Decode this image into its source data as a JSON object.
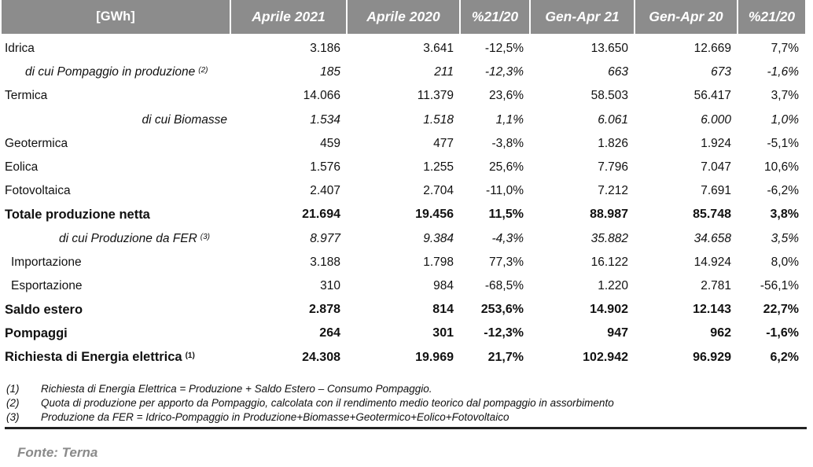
{
  "header": [
    "[GWh]",
    "Aprile 2021",
    "Aprile 2020",
    "%21/20",
    "Gen-Apr 21",
    "Gen-Apr 20",
    "%21/20"
  ],
  "rows": [
    {
      "label": "Idrica",
      "sup": "",
      "values": [
        "3.186",
        "3.641",
        "-12,5%",
        "13.650",
        "12.669",
        "7,7%"
      ]
    },
    {
      "label": "di cui Pompaggio in produzione",
      "sup": "(2)",
      "values": [
        "185",
        "211",
        "-12,3%",
        "663",
        "673",
        "-1,6%"
      ]
    },
    {
      "label": "Termica",
      "sup": "",
      "values": [
        "14.066",
        "11.379",
        "23,6%",
        "58.503",
        "56.417",
        "3,7%"
      ]
    },
    {
      "label": "di cui Biomasse",
      "sup": "",
      "values": [
        "1.534",
        "1.518",
        "1,1%",
        "6.061",
        "6.000",
        "1,0%"
      ]
    },
    {
      "label": "Geotermica",
      "sup": "",
      "values": [
        "459",
        "477",
        "-3,8%",
        "1.826",
        "1.924",
        "-5,1%"
      ]
    },
    {
      "label": "Eolica",
      "sup": "",
      "values": [
        "1.576",
        "1.255",
        "25,6%",
        "7.796",
        "7.047",
        "10,6%"
      ]
    },
    {
      "label": "Fotovoltaica",
      "sup": "",
      "values": [
        "2.407",
        "2.704",
        "-11,0%",
        "7.212",
        "7.691",
        "-6,2%"
      ]
    },
    {
      "label": "Totale produzione netta",
      "sup": "",
      "values": [
        "21.694",
        "19.456",
        "11,5%",
        "88.987",
        "85.748",
        "3,8%"
      ]
    },
    {
      "label": "di cui Produzione da FER",
      "sup": "(3)",
      "values": [
        "8.977",
        "9.384",
        "-4,3%",
        "35.882",
        "34.658",
        "3,5%"
      ]
    },
    {
      "label": "Importazione",
      "sup": "",
      "values": [
        "3.188",
        "1.798",
        "77,3%",
        "16.122",
        "14.924",
        "8,0%"
      ]
    },
    {
      "label": "Esportazione",
      "sup": "",
      "values": [
        "310",
        "984",
        "-68,5%",
        "1.220",
        "2.781",
        "-56,1%"
      ]
    },
    {
      "label": "Saldo estero",
      "sup": "",
      "values": [
        "2.878",
        "814",
        "253,6%",
        "14.902",
        "12.143",
        "22,7%"
      ]
    },
    {
      "label": "Pompaggi",
      "sup": "",
      "values": [
        "264",
        "301",
        "-12,3%",
        "947",
        "962",
        "-1,6%"
      ]
    },
    {
      "label": "Richiesta di Energia elettrica",
      "sup": "(1)",
      "values": [
        "24.308",
        "19.969",
        "21,7%",
        "102.942",
        "96.929",
        "6,2%"
      ]
    }
  ],
  "notes": [
    {
      "num": "(1)",
      "text": "Richiesta di Energia Elettrica = Produzione + Saldo Estero – Consumo Pompaggio."
    },
    {
      "num": "(2)",
      "text": "Quota di produzione per apporto da Pompaggio, calcolata con il rendimento medio teorico dal pompaggio in assorbimento"
    },
    {
      "num": "(3)",
      "text": "Produzione da FER = Idrico-Pompaggio in Produzione+Biomasse+Geotermico+Eolico+Fotovoltaico"
    }
  ],
  "source": "Fonte: Terna"
}
